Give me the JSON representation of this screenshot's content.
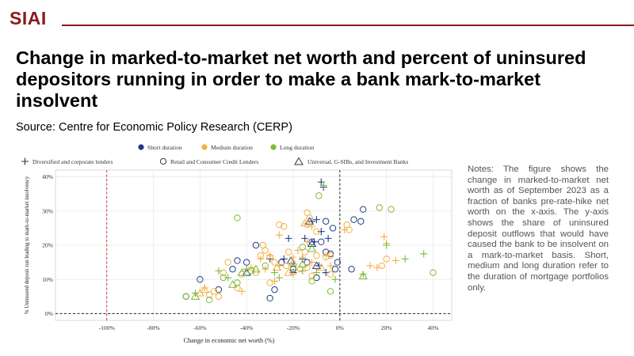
{
  "brand": {
    "logo": "SIAI",
    "accent_color": "#8b1a1a"
  },
  "headline": "Change in marked-to-market net worth and percent of uninsured depositors running in order to make a bank mark-to-market insolvent",
  "source": "Source: Centre for Economic Policy Research (CERP)",
  "notes": "Notes: The figure shows the change in marked-to-market net worth as of September 2023 as a fraction of banks pre-rate-hike net worth on the x-axis. The y-axis shows the share of uninsured deposit outflows that would have caused the bank to be insolvent on a mark-to-market basis. Short, medium and long duration refer to the duration of mortgage portfolios only.",
  "chart_data": {
    "type": "scatter",
    "xlabel": "Change in economic net worth (%)",
    "ylabel": "% Uninsured deposit run leading to mark-to-market insolvency",
    "xlim": [
      -122,
      48
    ],
    "ylim": [
      -2,
      42
    ],
    "xticks": [
      -100,
      -80,
      -60,
      -40,
      -20,
      0,
      20,
      40
    ],
    "xtick_labels": [
      "-100%",
      "-80%",
      "-60%",
      "-40%",
      "-20%",
      "0%",
      "20%",
      "40%"
    ],
    "yticks": [
      0,
      10,
      20,
      30,
      40
    ],
    "ytick_labels": [
      "0%",
      "10%",
      "20%",
      "30%",
      "40%"
    ],
    "grid": true,
    "reference_lines": [
      {
        "x": -100,
        "style": "dashed",
        "color": "#d9302f"
      },
      {
        "x": 0,
        "style": "dashed",
        "color": "#222222"
      },
      {
        "y": 0,
        "style": "dashed",
        "color": "#222222"
      }
    ],
    "legend_duration": {
      "placement": "top",
      "entries": [
        {
          "label": "Short duration",
          "color": "#1f3c88"
        },
        {
          "label": "Medium duration",
          "color": "#f5b040"
        },
        {
          "label": "Long duration",
          "color": "#7dbb3a"
        }
      ]
    },
    "legend_bank_type": {
      "placement": "top",
      "entries": [
        {
          "label": "Diversified and corporate lenders",
          "marker": "plus"
        },
        {
          "label": "Retail and Consumer Credit Lenders",
          "marker": "circle"
        },
        {
          "label": "Universal, G-SIBs, and Investment Banks",
          "marker": "triangle"
        }
      ]
    },
    "series": [
      {
        "duration": "short",
        "marker": "plus",
        "points": [
          [
            -8,
            38.5
          ],
          [
            -7,
            37
          ],
          [
            -12,
            27
          ],
          [
            -10,
            27.5
          ],
          [
            -8,
            24
          ],
          [
            -15,
            22
          ],
          [
            -11,
            21
          ],
          [
            -22,
            22
          ],
          [
            -5,
            22
          ],
          [
            -24,
            16
          ],
          [
            -16,
            16
          ],
          [
            -30,
            16
          ],
          [
            -9,
            14
          ],
          [
            -6,
            12
          ],
          [
            -20,
            12
          ]
        ]
      },
      {
        "duration": "short",
        "marker": "circle",
        "points": [
          [
            10,
            30.5
          ],
          [
            6,
            27.5
          ],
          [
            9,
            27
          ],
          [
            -6,
            27
          ],
          [
            -3,
            25
          ],
          [
            -12,
            21
          ],
          [
            -8,
            21
          ],
          [
            -36,
            20
          ],
          [
            -44,
            15.5
          ],
          [
            -40,
            15
          ],
          [
            -25,
            15
          ],
          [
            -14,
            15
          ],
          [
            -6,
            18
          ],
          [
            -4,
            17.5
          ],
          [
            -1,
            15
          ],
          [
            -46,
            13
          ],
          [
            -20,
            13
          ],
          [
            5,
            13
          ],
          [
            -60,
            10
          ],
          [
            -28,
            7
          ],
          [
            -52,
            7
          ],
          [
            -66,
            5
          ],
          [
            -30,
            4.5
          ],
          [
            -10,
            10.5
          ],
          [
            -2,
            13
          ]
        ]
      },
      {
        "duration": "short",
        "marker": "triangle",
        "points": [
          [
            -13,
            27
          ],
          [
            -12,
            20.5
          ],
          [
            -21,
            15.5
          ],
          [
            -10,
            14
          ],
          [
            -40,
            12
          ]
        ]
      },
      {
        "duration": "medium",
        "marker": "plus",
        "points": [
          [
            -12,
            25.5
          ],
          [
            2,
            24.5
          ],
          [
            -26,
            23
          ],
          [
            -14,
            21
          ],
          [
            19,
            22.5
          ],
          [
            20,
            20.5
          ],
          [
            -18,
            18.5
          ],
          [
            -30,
            17
          ],
          [
            -6,
            17
          ],
          [
            -20,
            16.5
          ],
          [
            -16,
            16.5
          ],
          [
            -34,
            16
          ],
          [
            -12,
            15
          ],
          [
            -26,
            14
          ],
          [
            -4,
            14
          ],
          [
            -38,
            13.5
          ],
          [
            -32,
            13
          ],
          [
            -20,
            11.5
          ],
          [
            13,
            14
          ],
          [
            16,
            13.5
          ],
          [
            24,
            15.5
          ],
          [
            -28,
            9.5
          ],
          [
            -58,
            7.5
          ],
          [
            -42,
            6.5
          ]
        ]
      },
      {
        "duration": "medium",
        "marker": "circle",
        "points": [
          [
            -14,
            29.5
          ],
          [
            -13,
            28
          ],
          [
            -14,
            26
          ],
          [
            -26,
            26
          ],
          [
            -24,
            25.5
          ],
          [
            3,
            26
          ],
          [
            -10,
            24
          ],
          [
            -33,
            20
          ],
          [
            4,
            24.5
          ],
          [
            -32,
            18.5
          ],
          [
            -22,
            18
          ],
          [
            -15,
            18
          ],
          [
            -10,
            17
          ],
          [
            -4,
            17
          ],
          [
            -6,
            16.5
          ],
          [
            -34,
            17
          ],
          [
            -30,
            16.5
          ],
          [
            -48,
            15
          ],
          [
            -28,
            15
          ],
          [
            -23,
            14
          ],
          [
            -14,
            13.5
          ],
          [
            -20,
            13.5
          ],
          [
            -17,
            13
          ],
          [
            -50,
            12
          ],
          [
            -36,
            12
          ],
          [
            -42,
            11.5
          ],
          [
            -12,
            11
          ],
          [
            -30,
            9
          ],
          [
            -44,
            7.5
          ],
          [
            -54,
            6.5
          ],
          [
            -52,
            5
          ],
          [
            -56,
            5.5
          ],
          [
            -4,
            11.5
          ],
          [
            20,
            16
          ],
          [
            18,
            14
          ]
        ]
      },
      {
        "duration": "medium",
        "marker": "triangle",
        "points": [
          [
            -15,
            26.5
          ],
          [
            -20,
            15
          ],
          [
            -8,
            13.5
          ],
          [
            -27,
            13.5
          ],
          [
            -22,
            12
          ],
          [
            -58,
            7
          ],
          [
            -60,
            6
          ]
        ]
      },
      {
        "duration": "long",
        "marker": "plus",
        "points": [
          [
            -7,
            37.5
          ],
          [
            -52,
            12.5
          ],
          [
            -40,
            13
          ],
          [
            -28,
            12
          ],
          [
            -26,
            10.5
          ],
          [
            -16,
            12.5
          ],
          [
            -10,
            12
          ],
          [
            -2,
            10
          ],
          [
            10,
            11.5
          ],
          [
            20,
            20
          ],
          [
            28,
            16
          ],
          [
            36,
            17.5
          ],
          [
            -48,
            10.5
          ],
          [
            -62,
            6
          ]
        ]
      },
      {
        "duration": "long",
        "marker": "circle",
        "points": [
          [
            -9,
            34.5
          ],
          [
            -44,
            28
          ],
          [
            17,
            31
          ],
          [
            22,
            30.5
          ],
          [
            -16,
            19.5
          ],
          [
            -32,
            14
          ],
          [
            -38,
            12.5
          ],
          [
            -50,
            10.5
          ],
          [
            -44,
            9
          ],
          [
            -56,
            4
          ],
          [
            -66,
            5
          ],
          [
            -4,
            6.5
          ],
          [
            40,
            12
          ],
          [
            -20,
            13.5
          ],
          [
            -12,
            9.5
          ]
        ]
      },
      {
        "duration": "long",
        "marker": "triangle",
        "points": [
          [
            -12,
            19
          ],
          [
            -16,
            14.5
          ],
          [
            -42,
            12
          ],
          [
            -36,
            13
          ],
          [
            -46,
            8.5
          ],
          [
            -62,
            5
          ],
          [
            10,
            11
          ]
        ]
      }
    ]
  }
}
